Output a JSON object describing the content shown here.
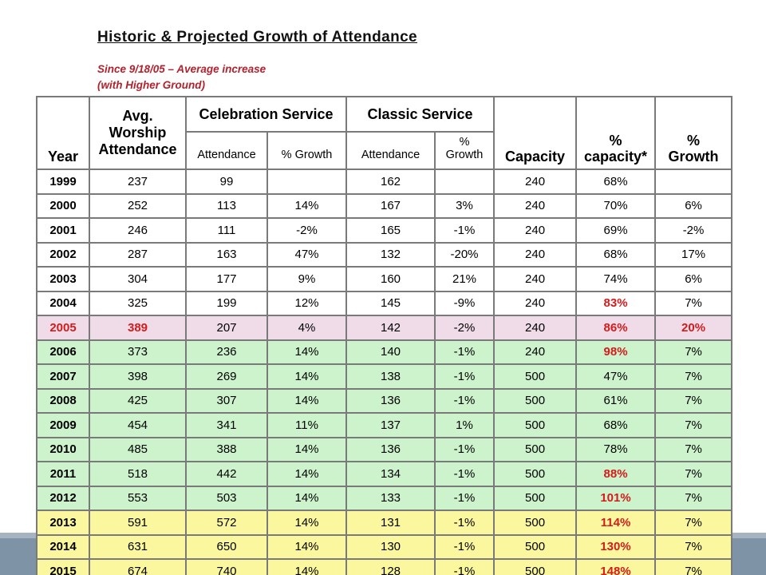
{
  "colors": {
    "band_dark": "#7e93a6",
    "band_light": "#a6b4c2",
    "border_gray": "#7a7a7a",
    "subtitle_red": "#b2222e",
    "red_text": "#d31c1c",
    "row_pink": "#f0dce9",
    "row_green": "#cdf3cd",
    "row_yellow": "#fbf79e"
  },
  "header": {
    "title": "Historic & Projected Growth of Attendance",
    "subtitle": "Since 9/18/05 – Average increase\n(with Higher Ground)"
  },
  "table": {
    "headers": {
      "year": "Year",
      "avg_worship": "Avg.\nWorship\nAttendance",
      "celebration_group": "Celebration Service",
      "classic_group": "Classic Service",
      "celebration_attendance": "Attendance",
      "celebration_growth": "% Growth",
      "classic_attendance": "Attendance",
      "classic_growth": "%\nGrowth",
      "capacity": "Capacity",
      "pct_capacity": "%\ncapacity*",
      "pct_growth": "%\nGrowth"
    },
    "rows": [
      {
        "bg": "white",
        "red_cells": [],
        "cells": [
          "1999",
          "237",
          "99",
          "",
          "162",
          "",
          "240",
          "68%",
          ""
        ]
      },
      {
        "bg": "white",
        "red_cells": [],
        "cells": [
          "2000",
          "252",
          "113",
          "14%",
          "167",
          "3%",
          "240",
          "70%",
          "6%"
        ]
      },
      {
        "bg": "white",
        "red_cells": [],
        "cells": [
          "2001",
          "246",
          "111",
          "-2%",
          "165",
          "-1%",
          "240",
          "69%",
          "-2%"
        ]
      },
      {
        "bg": "white",
        "red_cells": [],
        "cells": [
          "2002",
          "287",
          "163",
          "47%",
          "132",
          "-20%",
          "240",
          "68%",
          "17%"
        ]
      },
      {
        "bg": "white",
        "red_cells": [],
        "cells": [
          "2003",
          "304",
          "177",
          "9%",
          "160",
          "21%",
          "240",
          "74%",
          "6%"
        ]
      },
      {
        "bg": "white",
        "red_cells": [
          7
        ],
        "cells": [
          "2004",
          "325",
          "199",
          "12%",
          "145",
          "-9%",
          "240",
          "83%",
          "7%"
        ]
      },
      {
        "bg": "pink",
        "red_cells": [
          0,
          1,
          7,
          8
        ],
        "cells": [
          "2005",
          "389",
          "207",
          "4%",
          "142",
          "-2%",
          "240",
          "86%",
          "20%"
        ]
      },
      {
        "bg": "green",
        "red_cells": [
          7
        ],
        "cells": [
          "2006",
          "373",
          "236",
          "14%",
          "140",
          "-1%",
          "240",
          "98%",
          "7%"
        ]
      },
      {
        "bg": "green",
        "red_cells": [],
        "cells": [
          "2007",
          "398",
          "269",
          "14%",
          "138",
          "-1%",
          "500",
          "47%",
          "7%"
        ]
      },
      {
        "bg": "green",
        "red_cells": [],
        "cells": [
          "2008",
          "425",
          "307",
          "14%",
          "136",
          "-1%",
          "500",
          "61%",
          "7%"
        ]
      },
      {
        "bg": "green",
        "red_cells": [],
        "cells": [
          "2009",
          "454",
          "341",
          "11%",
          "137",
          "1%",
          "500",
          "68%",
          "7%"
        ]
      },
      {
        "bg": "green",
        "red_cells": [],
        "cells": [
          "2010",
          "485",
          "388",
          "14%",
          "136",
          "-1%",
          "500",
          "78%",
          "7%"
        ]
      },
      {
        "bg": "green",
        "red_cells": [
          7
        ],
        "cells": [
          "2011",
          "518",
          "442",
          "14%",
          "134",
          "-1%",
          "500",
          "88%",
          "7%"
        ]
      },
      {
        "bg": "green",
        "red_cells": [
          7
        ],
        "cells": [
          "2012",
          "553",
          "503",
          "14%",
          "133",
          "-1%",
          "500",
          "101%",
          "7%"
        ]
      },
      {
        "bg": "yellow",
        "red_cells": [
          7
        ],
        "cells": [
          "2013",
          "591",
          "572",
          "14%",
          "131",
          "-1%",
          "500",
          "114%",
          "7%"
        ]
      },
      {
        "bg": "yellow",
        "red_cells": [
          7
        ],
        "cells": [
          "2014",
          "631",
          "650",
          "14%",
          "130",
          "-1%",
          "500",
          "130%",
          "7%"
        ]
      },
      {
        "bg": "yellow",
        "red_cells": [
          7
        ],
        "cells": [
          "2015",
          "674",
          "740",
          "14%",
          "128",
          "-1%",
          "500",
          "148%",
          "7%"
        ]
      }
    ]
  }
}
